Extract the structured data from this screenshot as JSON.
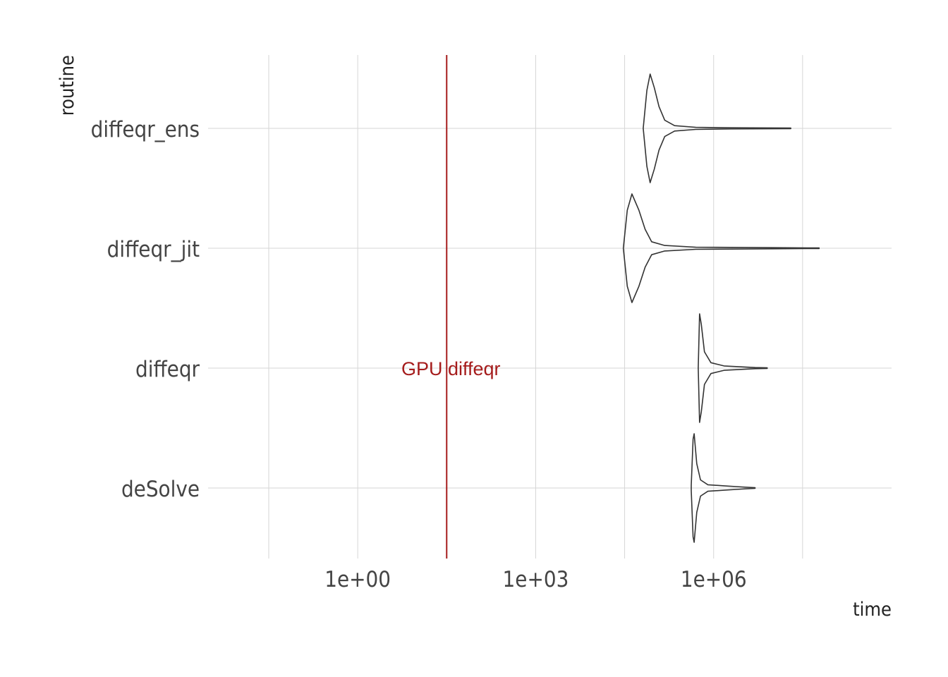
{
  "chart_data": {
    "type": "violin",
    "title": "",
    "xlabel": "time",
    "ylabel": "routine",
    "x_scale": "log10",
    "xlim": [
      0.003,
      1000000000
    ],
    "x_tick_values": [
      1,
      1000,
      1000000
    ],
    "x_tick_labels": [
      "1e+00",
      "1e+03",
      "1e+06"
    ],
    "x_minor_grid_values": [
      0.0316,
      31.6,
      31600,
      31600000
    ],
    "grid": true,
    "categories": [
      "diffeqr_ens",
      "diffeqr_jit",
      "diffeqr",
      "deSolve"
    ],
    "series": [
      {
        "category": "diffeqr_ens",
        "profile": [
          [
            65000,
            0.0
          ],
          [
            75000,
            0.7
          ],
          [
            85000,
            1.0
          ],
          [
            100000,
            0.75
          ],
          [
            120000,
            0.4
          ],
          [
            150000,
            0.15
          ],
          [
            220000,
            0.05
          ],
          [
            500000,
            0.02
          ],
          [
            2000000,
            0.01
          ],
          [
            20000000,
            0.005
          ]
        ]
      },
      {
        "category": "diffeqr_jit",
        "profile": [
          [
            30000,
            0.0
          ],
          [
            35000,
            0.7
          ],
          [
            42000,
            1.0
          ],
          [
            55000,
            0.7
          ],
          [
            70000,
            0.35
          ],
          [
            90000,
            0.12
          ],
          [
            150000,
            0.05
          ],
          [
            500000,
            0.02
          ],
          [
            10000000,
            0.01
          ],
          [
            60000000,
            0.005
          ]
        ]
      },
      {
        "category": "diffeqr",
        "profile": [
          [
            550000,
            0.0
          ],
          [
            580000,
            1.0
          ],
          [
            620000,
            0.8
          ],
          [
            700000,
            0.3
          ],
          [
            900000,
            0.1
          ],
          [
            1500000,
            0.04
          ],
          [
            5000000,
            0.01
          ],
          [
            8000000,
            0.005
          ]
        ]
      },
      {
        "category": "deSolve",
        "profile": [
          [
            420000,
            0.05
          ],
          [
            450000,
            0.9
          ],
          [
            470000,
            1.0
          ],
          [
            520000,
            0.45
          ],
          [
            600000,
            0.15
          ],
          [
            800000,
            0.06
          ],
          [
            1500000,
            0.04
          ],
          [
            3000000,
            0.02
          ],
          [
            5000000,
            0.005
          ]
        ]
      }
    ],
    "reference_line": {
      "x": 31.6,
      "label": "GPU diffeqr",
      "color": "#a51c1c"
    }
  }
}
